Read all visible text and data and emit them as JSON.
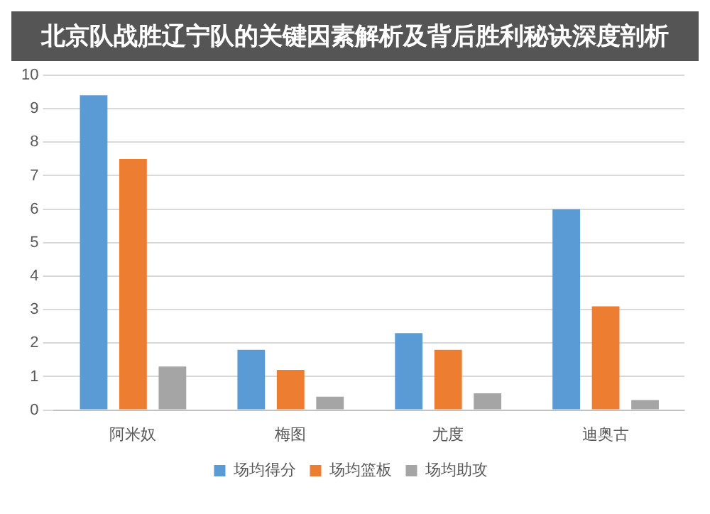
{
  "chart_data": {
    "type": "bar",
    "title": "北京队战胜辽宁队的关键因素解析及背后胜利秘诀深度剖析",
    "categories": [
      "阿米奴",
      "梅图",
      "尤度",
      "迪奥古"
    ],
    "series": [
      {
        "name": "场均得分",
        "color": "#5b9bd5",
        "values": [
          9.4,
          1.8,
          2.3,
          6.0
        ]
      },
      {
        "name": "场均篮板",
        "color": "#ed7d31",
        "values": [
          7.5,
          1.2,
          1.8,
          3.1
        ]
      },
      {
        "name": "场均助攻",
        "color": "#a5a5a5",
        "values": [
          1.3,
          0.4,
          0.5,
          0.3
        ]
      }
    ],
    "ylim": [
      0,
      10
    ],
    "yticks": [
      0,
      1,
      2,
      3,
      4,
      5,
      6,
      7,
      8,
      9,
      10
    ],
    "grid": "y",
    "legend": "bottom"
  }
}
